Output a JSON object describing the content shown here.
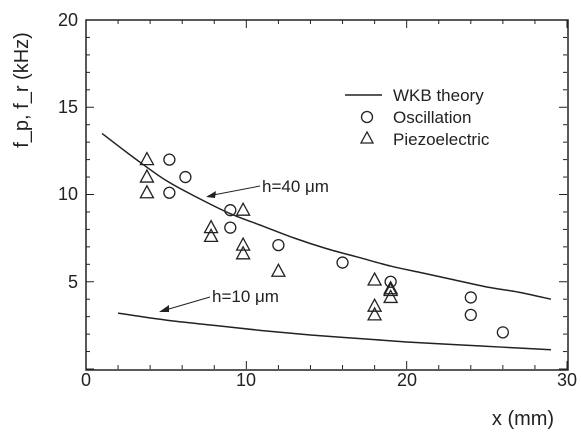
{
  "chart_data": {
    "type": "scatter",
    "title": "",
    "xlabel": "x (mm)",
    "ylabel": "f_p, f_r (kHz)",
    "xlim": [
      0,
      30
    ],
    "ylim": [
      0,
      20
    ],
    "x_ticks": [
      "0",
      "10",
      "20",
      "30"
    ],
    "y_ticks": [
      "5",
      "10",
      "15",
      "20"
    ],
    "grid": false,
    "legend_position": "top-right",
    "legend": [
      "WKB theory",
      "Oscillation",
      "Piezoelectric"
    ],
    "annotations": [
      "h=40 μm",
      "h=10 μm"
    ],
    "series": [
      {
        "name": "WKB theory",
        "kind": "line",
        "curves": [
          {
            "label": "h=40 μm",
            "x": [
              1,
              3,
              5,
              7,
              9,
              11,
              13,
              15,
              17,
              19,
              21,
              23,
              25,
              27,
              29
            ],
            "y": [
              13.5,
              12.1,
              10.8,
              9.8,
              8.9,
              8.2,
              7.5,
              6.9,
              6.4,
              5.9,
              5.5,
              5.1,
              4.7,
              4.4,
              4.0
            ]
          },
          {
            "label": "h=10 μm",
            "x": [
              2,
              5,
              8,
              11,
              14,
              17,
              20,
              23,
              26,
              29
            ],
            "y": [
              3.2,
              2.8,
              2.5,
              2.2,
              1.95,
              1.75,
              1.55,
              1.4,
              1.25,
              1.1
            ]
          }
        ]
      },
      {
        "name": "Oscillation",
        "kind": "marker-circle",
        "x": [
          5.2,
          5.2,
          6.2,
          9.0,
          9.0,
          12.0,
          16.0,
          19.0,
          24.0,
          24.0,
          26.0
        ],
        "y": [
          12.0,
          10.1,
          11.0,
          9.1,
          8.1,
          7.1,
          6.1,
          5.0,
          4.1,
          3.1,
          2.1
        ]
      },
      {
        "name": "Piezoelectric",
        "kind": "marker-triangle",
        "x": [
          3.8,
          3.8,
          3.8,
          7.8,
          7.8,
          9.8,
          9.8,
          9.8,
          12.0,
          18.0,
          18.0,
          18.0,
          19.0,
          19.0,
          19.0
        ],
        "y": [
          12.0,
          11.0,
          10.1,
          8.1,
          7.6,
          9.1,
          7.1,
          6.6,
          5.6,
          5.1,
          3.6,
          3.1,
          4.6,
          4.1,
          4.5
        ]
      }
    ]
  }
}
